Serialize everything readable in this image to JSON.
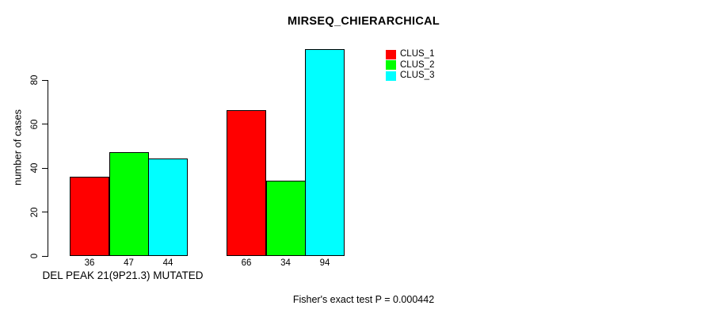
{
  "title": "MIRSEQ_CHIERARCHICAL",
  "y_axis": {
    "label": "number of cases",
    "ticks": [
      0,
      20,
      40,
      60,
      80
    ]
  },
  "x_axis": {
    "group_label": "DEL PEAK 21(9P21.3) MUTATED"
  },
  "footer": {
    "stat_text": "Fisher's exact test P = 0.000442"
  },
  "legend": {
    "position": "top-right",
    "items": [
      {
        "label": "CLUS_1",
        "color": "#ff0000"
      },
      {
        "label": "CLUS_2",
        "color": "#00ff00"
      },
      {
        "label": "CLUS_3",
        "color": "#00ffff"
      }
    ]
  },
  "chart_data": {
    "type": "bar",
    "title": "MIRSEQ_CHIERARCHICAL",
    "xlabel": "DEL PEAK 21(9P21.3) MUTATED",
    "ylabel": "number of cases",
    "ylim": [
      0,
      95
    ],
    "yticks": [
      0,
      20,
      40,
      60,
      80
    ],
    "categories": [
      "DEL PEAK 21(9P21.3) MUTATED",
      ""
    ],
    "series": [
      {
        "name": "CLUS_1",
        "color": "#ff0000",
        "values": [
          36,
          66
        ]
      },
      {
        "name": "CLUS_2",
        "color": "#00ff00",
        "values": [
          47,
          34
        ]
      },
      {
        "name": "CLUS_3",
        "color": "#00ffff",
        "values": [
          44,
          94
        ]
      }
    ],
    "bar_value_labels": [
      [
        36,
        47,
        44
      ],
      [
        66,
        34,
        94
      ]
    ],
    "annotation": "Fisher's exact test P = 0.000442",
    "legend_position": "top-right",
    "grid": false,
    "bar_border_color": "#000000",
    "background_color": "#ffffff"
  }
}
